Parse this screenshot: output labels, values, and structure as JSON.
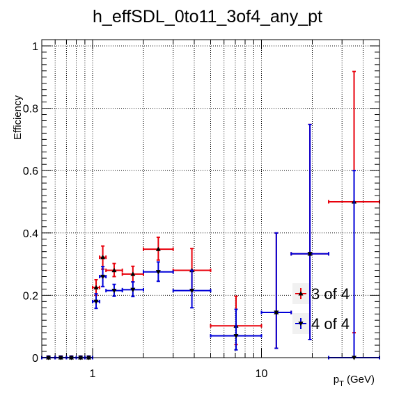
{
  "chart_data": {
    "type": "scatter",
    "title": "h_effSDL_0to11_3of4_any_pt",
    "xlabel": "p_T (GeV)",
    "xlabel_main": "p",
    "xlabel_sub": "T",
    "xlabel_rest": " (GeV)",
    "ylabel": "Efficiency",
    "x_scale": "log",
    "xlim": [
      0.5,
      50
    ],
    "ylim": [
      0,
      1.02
    ],
    "grid": true,
    "legend_position": "bottom-right",
    "x_ticks": [
      {
        "value": 1,
        "label": "1"
      },
      {
        "value": 10,
        "label": "10"
      }
    ],
    "y_ticks": [
      {
        "value": 0,
        "label": "0"
      },
      {
        "value": 0.2,
        "label": "0.2"
      },
      {
        "value": 0.4,
        "label": "0.4"
      },
      {
        "value": 0.6,
        "label": "0.6"
      },
      {
        "value": 0.8,
        "label": "0.8"
      },
      {
        "value": 1,
        "label": "1"
      }
    ],
    "series": [
      {
        "name": "3 of 4",
        "color": "#e8000b",
        "marker": "triangle-up",
        "points": [
          {
            "xlo": 0.5,
            "xhi": 0.6,
            "y": 0.0,
            "elo": 0.0,
            "ehi": 0.005
          },
          {
            "xlo": 0.6,
            "xhi": 0.7,
            "y": 0.0,
            "elo": 0.0,
            "ehi": 0.005
          },
          {
            "xlo": 0.7,
            "xhi": 0.8,
            "y": 0.0,
            "elo": 0.0,
            "ehi": 0.005
          },
          {
            "xlo": 0.8,
            "xhi": 0.9,
            "y": 0.0,
            "elo": 0.0,
            "ehi": 0.005
          },
          {
            "xlo": 0.9,
            "xhi": 1.0,
            "y": 0.0,
            "elo": 0.0,
            "ehi": 0.005
          },
          {
            "xlo": 1.0,
            "xhi": 1.1,
            "y": 0.225,
            "elo": 0.025,
            "ehi": 0.025
          },
          {
            "xlo": 1.1,
            "xhi": 1.2,
            "y": 0.322,
            "elo": 0.038,
            "ehi": 0.036
          },
          {
            "xlo": 1.2,
            "xhi": 1.5,
            "y": 0.28,
            "elo": 0.02,
            "ehi": 0.022
          },
          {
            "xlo": 1.5,
            "xhi": 2.0,
            "y": 0.268,
            "elo": 0.025,
            "ehi": 0.025
          },
          {
            "xlo": 2.0,
            "xhi": 3.0,
            "y": 0.348,
            "elo": 0.035,
            "ehi": 0.038
          },
          {
            "xlo": 3.0,
            "xhi": 5.0,
            "y": 0.28,
            "elo": 0.065,
            "ehi": 0.07
          },
          {
            "xlo": 5.0,
            "xhi": 10.0,
            "y": 0.102,
            "elo": 0.06,
            "ehi": 0.095
          },
          {
            "xlo": 10.0,
            "xhi": 15.0,
            "y": 0.145,
            "elo": 0.115,
            "ehi": 0.255
          },
          {
            "xlo": 15.0,
            "xhi": 25.0,
            "y": 0.333,
            "elo": 0.275,
            "ehi": 0.415
          },
          {
            "xlo": 25.0,
            "xhi": 50.0,
            "y": 0.5,
            "elo": 0.42,
            "ehi": 0.418
          }
        ]
      },
      {
        "name": "4 of 4",
        "color": "#0000d8",
        "marker": "triangle-down",
        "points": [
          {
            "xlo": 0.5,
            "xhi": 0.6,
            "y": 0.0,
            "elo": 0.0,
            "ehi": 0.005
          },
          {
            "xlo": 0.6,
            "xhi": 0.7,
            "y": 0.0,
            "elo": 0.0,
            "ehi": 0.005
          },
          {
            "xlo": 0.7,
            "xhi": 0.8,
            "y": 0.0,
            "elo": 0.0,
            "ehi": 0.005
          },
          {
            "xlo": 0.8,
            "xhi": 0.9,
            "y": 0.0,
            "elo": 0.0,
            "ehi": 0.005
          },
          {
            "xlo": 0.9,
            "xhi": 1.0,
            "y": 0.0,
            "elo": 0.0,
            "ehi": 0.005
          },
          {
            "xlo": 1.0,
            "xhi": 1.1,
            "y": 0.18,
            "elo": 0.022,
            "ehi": 0.025
          },
          {
            "xlo": 1.1,
            "xhi": 1.2,
            "y": 0.26,
            "elo": 0.032,
            "ehi": 0.032
          },
          {
            "xlo": 1.2,
            "xhi": 1.5,
            "y": 0.215,
            "elo": 0.018,
            "ehi": 0.02
          },
          {
            "xlo": 1.5,
            "xhi": 2.0,
            "y": 0.218,
            "elo": 0.022,
            "ehi": 0.025
          },
          {
            "xlo": 2.0,
            "xhi": 3.0,
            "y": 0.275,
            "elo": 0.03,
            "ehi": 0.032
          },
          {
            "xlo": 3.0,
            "xhi": 5.0,
            "y": 0.215,
            "elo": 0.055,
            "ehi": 0.065
          },
          {
            "xlo": 5.0,
            "xhi": 10.0,
            "y": 0.07,
            "elo": 0.045,
            "ehi": 0.085
          },
          {
            "xlo": 10.0,
            "xhi": 15.0,
            "y": 0.145,
            "elo": 0.115,
            "ehi": 0.255
          },
          {
            "xlo": 15.0,
            "xhi": 25.0,
            "y": 0.333,
            "elo": 0.275,
            "ehi": 0.415
          },
          {
            "xlo": 25.0,
            "xhi": 50.0,
            "y": 0.0,
            "elo": 0.0,
            "ehi": 0.6
          }
        ]
      }
    ]
  }
}
